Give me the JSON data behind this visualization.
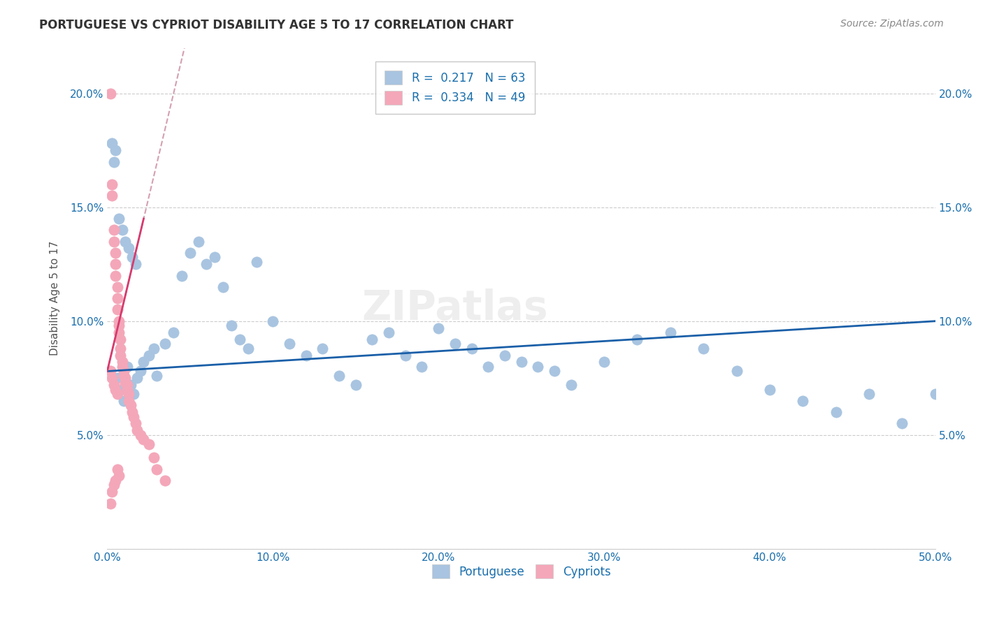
{
  "title": "PORTUGUESE VS CYPRIOT DISABILITY AGE 5 TO 17 CORRELATION CHART",
  "source": "Source: ZipAtlas.com",
  "xlabel": "",
  "ylabel": "Disability Age 5 to 17",
  "xlim": [
    0.0,
    0.5
  ],
  "ylim": [
    0.0,
    0.22
  ],
  "xticks": [
    0.0,
    0.1,
    0.2,
    0.3,
    0.4,
    0.5
  ],
  "xticklabels": [
    "0.0%",
    "10.0%",
    "20.0%",
    "30.0%",
    "40.0%",
    "50.0%"
  ],
  "yticks": [
    0.0,
    0.05,
    0.1,
    0.15,
    0.2
  ],
  "yticklabels": [
    "",
    "5.0%",
    "10.0%",
    "15.0%",
    "20.0%"
  ],
  "blue_R": 0.217,
  "blue_N": 63,
  "pink_R": 0.334,
  "pink_N": 49,
  "blue_color": "#a8c4e0",
  "pink_color": "#f4a7b9",
  "blue_line_color": "#1a5fa8",
  "pink_line_color": "#d63b6e",
  "pink_dash_color": "#d4a0b0",
  "watermark": "ZIPatlas",
  "portuguese_x": [
    0.006,
    0.008,
    0.01,
    0.012,
    0.014,
    0.016,
    0.018,
    0.02,
    0.022,
    0.025,
    0.028,
    0.03,
    0.035,
    0.04,
    0.045,
    0.05,
    0.055,
    0.06,
    0.065,
    0.07,
    0.075,
    0.08,
    0.085,
    0.09,
    0.1,
    0.11,
    0.12,
    0.13,
    0.14,
    0.15,
    0.16,
    0.17,
    0.18,
    0.19,
    0.2,
    0.21,
    0.22,
    0.23,
    0.24,
    0.25,
    0.26,
    0.27,
    0.28,
    0.3,
    0.32,
    0.34,
    0.36,
    0.38,
    0.4,
    0.42,
    0.44,
    0.46,
    0.48,
    0.5,
    0.003,
    0.004,
    0.005,
    0.007,
    0.009,
    0.011,
    0.013,
    0.015,
    0.017
  ],
  "portuguese_y": [
    0.075,
    0.07,
    0.065,
    0.08,
    0.072,
    0.068,
    0.075,
    0.078,
    0.082,
    0.085,
    0.088,
    0.076,
    0.09,
    0.095,
    0.12,
    0.13,
    0.135,
    0.125,
    0.128,
    0.115,
    0.098,
    0.092,
    0.088,
    0.126,
    0.1,
    0.09,
    0.085,
    0.088,
    0.076,
    0.072,
    0.092,
    0.095,
    0.085,
    0.08,
    0.097,
    0.09,
    0.088,
    0.08,
    0.085,
    0.082,
    0.08,
    0.078,
    0.072,
    0.082,
    0.092,
    0.095,
    0.088,
    0.078,
    0.07,
    0.065,
    0.06,
    0.068,
    0.055,
    0.068,
    0.178,
    0.17,
    0.175,
    0.145,
    0.14,
    0.135,
    0.132,
    0.128,
    0.125
  ],
  "cypriot_x": [
    0.002,
    0.003,
    0.003,
    0.004,
    0.004,
    0.005,
    0.005,
    0.005,
    0.006,
    0.006,
    0.006,
    0.007,
    0.007,
    0.007,
    0.008,
    0.008,
    0.008,
    0.009,
    0.009,
    0.01,
    0.01,
    0.011,
    0.011,
    0.012,
    0.012,
    0.013,
    0.013,
    0.014,
    0.015,
    0.016,
    0.017,
    0.018,
    0.02,
    0.022,
    0.025,
    0.028,
    0.03,
    0.035,
    0.002,
    0.002,
    0.003,
    0.003,
    0.004,
    0.004,
    0.005,
    0.005,
    0.006,
    0.006,
    0.007
  ],
  "cypriot_y": [
    0.2,
    0.16,
    0.155,
    0.14,
    0.135,
    0.13,
    0.125,
    0.12,
    0.115,
    0.11,
    0.105,
    0.1,
    0.098,
    0.095,
    0.092,
    0.088,
    0.085,
    0.082,
    0.08,
    0.078,
    0.076,
    0.075,
    0.073,
    0.072,
    0.07,
    0.068,
    0.065,
    0.063,
    0.06,
    0.058,
    0.055,
    0.052,
    0.05,
    0.048,
    0.046,
    0.04,
    0.035,
    0.03,
    0.078,
    0.02,
    0.075,
    0.025,
    0.072,
    0.028,
    0.07,
    0.03,
    0.068,
    0.035,
    0.032
  ]
}
